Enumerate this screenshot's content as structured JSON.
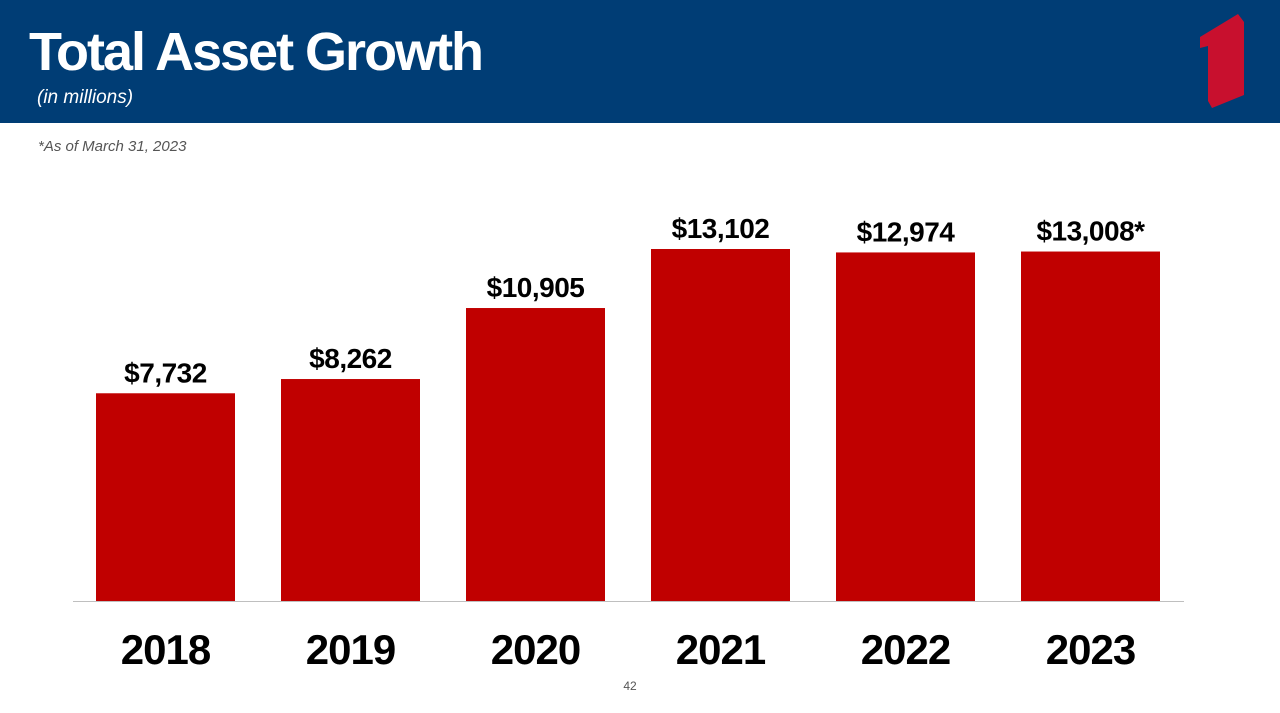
{
  "slide": {
    "title": "Total Asset Growth",
    "subtitle": "(in millions)",
    "footnote": "*As of March 31, 2023",
    "page_number": "42"
  },
  "colors": {
    "header": "#003d75",
    "bar": "#c00000",
    "logo": "#c8102e",
    "axis": "#bfbfbf",
    "label": "#000000"
  },
  "chart_data": {
    "type": "bar",
    "categories": [
      "2018",
      "2019",
      "2020",
      "2021",
      "2022",
      "2023"
    ],
    "values": [
      7732,
      8262,
      10905,
      13102,
      12974,
      13008
    ],
    "data_labels": [
      "$7,732",
      "$8,262",
      "$10,905",
      "$13,102",
      "$12,974",
      "$13,008*"
    ],
    "ylim": [
      0,
      13102
    ],
    "grid": false,
    "legend": "none"
  }
}
